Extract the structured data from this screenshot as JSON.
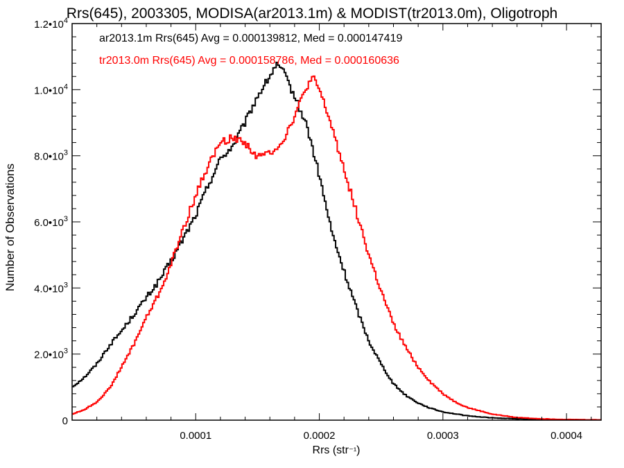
{
  "chart_data": {
    "type": "line",
    "title": "Rrs(645), 2003305, MODISA(ar2013.1m) & MODIST(tr2013.0m), Oligotroph",
    "xlabel": "Rrs (str⁻¹)",
    "ylabel": "Number of Observations",
    "xlim": [
      0.0,
      0.000428
    ],
    "ylim": [
      0,
      12000
    ],
    "x_ticks": [
      {
        "value": 0.0001,
        "label": "0.0001"
      },
      {
        "value": 0.0002,
        "label": "0.0002"
      },
      {
        "value": 0.0003,
        "label": "0.0003"
      },
      {
        "value": 0.0004,
        "label": "0.0004"
      }
    ],
    "y_ticks": [
      {
        "value": 0,
        "mant": "0",
        "exp": ""
      },
      {
        "value": 2000,
        "mant": "2.0•10",
        "exp": "3"
      },
      {
        "value": 4000,
        "mant": "4.0•10",
        "exp": "3"
      },
      {
        "value": 6000,
        "mant": "6.0•10",
        "exp": "3"
      },
      {
        "value": 8000,
        "mant": "8.0•10",
        "exp": "3"
      },
      {
        "value": 10000,
        "mant": "1.0•10",
        "exp": "4"
      },
      {
        "value": 12000,
        "mant": "1.2•10",
        "exp": "4"
      }
    ],
    "grid": false,
    "legend_position": "top-left",
    "series": [
      {
        "name": "ar2013.1m",
        "color": "#000000",
        "legend": "ar2013.1m Rrs(645) Avg = 0.000139812, Med = 0.000147419",
        "points": [
          [
            0.0,
            1000
          ],
          [
            1e-05,
            1300
          ],
          [
            2e-05,
            1700
          ],
          [
            3e-05,
            2250
          ],
          [
            4e-05,
            2700
          ],
          [
            5e-05,
            3200
          ],
          [
            6e-05,
            3700
          ],
          [
            7e-05,
            4200
          ],
          [
            8e-05,
            4800
          ],
          [
            9e-05,
            5500
          ],
          [
            0.0001,
            6200
          ],
          [
            0.00011,
            7100
          ],
          [
            0.00012,
            7900
          ],
          [
            0.00013,
            8300
          ],
          [
            0.00014,
            9000
          ],
          [
            0.00015,
            9800
          ],
          [
            0.00016,
            10400
          ],
          [
            0.000165,
            10750
          ],
          [
            0.00017,
            10600
          ],
          [
            0.00018,
            9800
          ],
          [
            0.00019,
            8900
          ],
          [
            0.0002,
            7400
          ],
          [
            0.00021,
            5700
          ],
          [
            0.00022,
            4500
          ],
          [
            0.00023,
            3400
          ],
          [
            0.00024,
            2400
          ],
          [
            0.00025,
            1700
          ],
          [
            0.00026,
            1100
          ],
          [
            0.00027,
            750
          ],
          [
            0.00028,
            520
          ],
          [
            0.00029,
            360
          ],
          [
            0.0003,
            250
          ],
          [
            0.00032,
            130
          ],
          [
            0.00034,
            70
          ],
          [
            0.00036,
            40
          ],
          [
            0.00038,
            22
          ],
          [
            0.0004,
            12
          ],
          [
            0.00042,
            6
          ],
          [
            0.000428,
            5
          ]
        ]
      },
      {
        "name": "tr2013.0m",
        "color": "#ff0000",
        "legend": "tr2013.0m Rrs(645) Avg = 0.000158786, Med = 0.000160636",
        "points": [
          [
            0.0,
            180
          ],
          [
            1e-05,
            320
          ],
          [
            2e-05,
            550
          ],
          [
            3e-05,
            950
          ],
          [
            4e-05,
            1600
          ],
          [
            5e-05,
            2300
          ],
          [
            6e-05,
            3100
          ],
          [
            7e-05,
            3800
          ],
          [
            8e-05,
            4700
          ],
          [
            9e-05,
            5800
          ],
          [
            0.0001,
            6800
          ],
          [
            0.00011,
            7700
          ],
          [
            0.00012,
            8400
          ],
          [
            0.00013,
            8550
          ],
          [
            0.00014,
            8400
          ],
          [
            0.00015,
            7950
          ],
          [
            0.00016,
            8100
          ],
          [
            0.00017,
            8400
          ],
          [
            0.00018,
            9200
          ],
          [
            0.00019,
            10100
          ],
          [
            0.000195,
            10350
          ],
          [
            0.0002,
            10000
          ],
          [
            0.00021,
            8900
          ],
          [
            0.00022,
            7600
          ],
          [
            0.00023,
            6300
          ],
          [
            0.00024,
            5000
          ],
          [
            0.00025,
            3900
          ],
          [
            0.00026,
            2900
          ],
          [
            0.00027,
            2200
          ],
          [
            0.00028,
            1600
          ],
          [
            0.00029,
            1150
          ],
          [
            0.0003,
            800
          ],
          [
            0.00031,
            550
          ],
          [
            0.00032,
            380
          ],
          [
            0.00034,
            180
          ],
          [
            0.00036,
            80
          ],
          [
            0.00038,
            40
          ],
          [
            0.0004,
            20
          ],
          [
            0.00042,
            12
          ],
          [
            0.000428,
            10
          ]
        ]
      }
    ]
  }
}
